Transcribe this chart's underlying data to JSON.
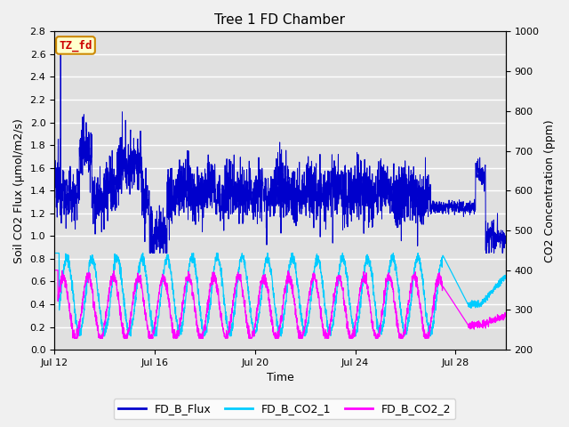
{
  "title": "Tree 1 FD Chamber",
  "xlabel": "Time",
  "ylabel_left": "Soil CO2 Flux (μmol/m2/s)",
  "ylabel_right": "CO2 Concentration (ppm)",
  "ylim_left": [
    0.0,
    2.8
  ],
  "ylim_right": [
    200,
    1000
  ],
  "yticks_left": [
    0.0,
    0.2,
    0.4,
    0.6,
    0.8,
    1.0,
    1.2,
    1.4,
    1.6,
    1.8,
    2.0,
    2.2,
    2.4,
    2.6,
    2.8
  ],
  "yticks_right": [
    200,
    300,
    400,
    500,
    600,
    700,
    800,
    900,
    1000
  ],
  "xtick_labels": [
    "Jul 12",
    "Jul 16",
    "Jul 20",
    "Jul 24",
    "Jul 28"
  ],
  "xtick_days": [
    0,
    4,
    8,
    12,
    16
  ],
  "xlim": [
    0,
    18
  ],
  "annotation_text": "TZ_fd",
  "annotation_bbox_facecolor": "#ffffcc",
  "annotation_bbox_edgecolor": "#cc8800",
  "annotation_text_color": "#cc0000",
  "flux_color": "#0000cc",
  "co2_1_color": "#00ccff",
  "co2_2_color": "#ff00ff",
  "legend_labels": [
    "FD_B_Flux",
    "FD_B_CO2_1",
    "FD_B_CO2_2"
  ],
  "background_color": "#e0e0e0",
  "grid_color": "#ffffff",
  "title_fontsize": 11,
  "label_fontsize": 9,
  "tick_fontsize": 8,
  "legend_fontsize": 9
}
